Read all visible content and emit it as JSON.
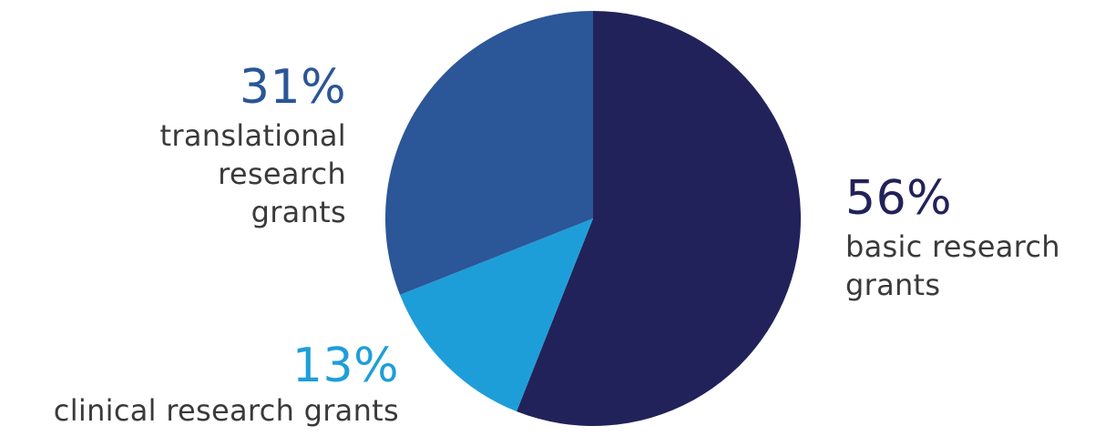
{
  "chart_data": {
    "type": "pie",
    "slices": [
      {
        "label_lines": [
          "basic research",
          "grants"
        ],
        "value": 56,
        "display": "56%",
        "color": "#22225a"
      },
      {
        "label_lines": [
          "clinical research grants"
        ],
        "value": 13,
        "display": "13%",
        "color": "#1e9ed9"
      },
      {
        "label_lines": [
          "translational",
          "research",
          "grants"
        ],
        "value": 31,
        "display": "31%",
        "color": "#2b5697"
      }
    ],
    "start_angle_deg": 0,
    "direction": "clockwise",
    "legend": "none"
  }
}
